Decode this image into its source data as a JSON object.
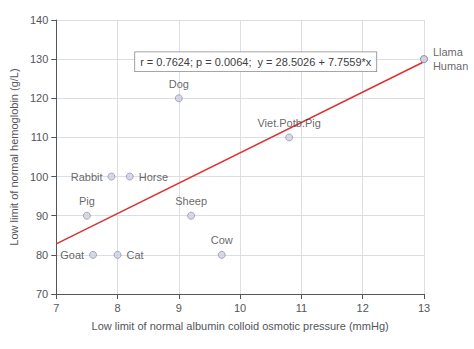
{
  "chart_data": {
    "type": "scatter",
    "xlabel": "Low limit of normal albumin colloid osmotic pressure (mmHg)",
    "ylabel": "Low limit of normal hemoglobin (g/L)",
    "xlim": [
      7,
      13
    ],
    "ylim": [
      70,
      140
    ],
    "xticks": [
      7,
      8,
      9,
      10,
      11,
      12,
      13
    ],
    "yticks": [
      70,
      80,
      90,
      100,
      110,
      120,
      130,
      140
    ],
    "grid": true,
    "series": [
      {
        "type": "scatter",
        "color": "#d0d0e0",
        "marker": "circle",
        "x": [
          7.5,
          7.6,
          8.0,
          7.9,
          8.2,
          9.0,
          9.2,
          9.7,
          10.8,
          13.0,
          13.0
        ],
        "values": [
          90,
          80,
          80,
          100,
          100,
          120,
          90,
          80,
          110,
          130,
          130
        ],
        "labels": [
          "Pig",
          "Goat",
          "Cat",
          "Rabbit",
          "Horse",
          "Dog",
          "Sheep",
          "Cow",
          "Viet.Potb.Pig",
          "Llama",
          "Human"
        ]
      },
      {
        "type": "line",
        "color": "#e03030",
        "line_style": "solid",
        "x": [
          7.0,
          13.0
        ],
        "values": [
          82.7939,
          129.3293
        ]
      }
    ],
    "annotations": [
      "r = 0.7624; p = 0.0064;  y = 28.5026 + 7.7559*x"
    ]
  }
}
